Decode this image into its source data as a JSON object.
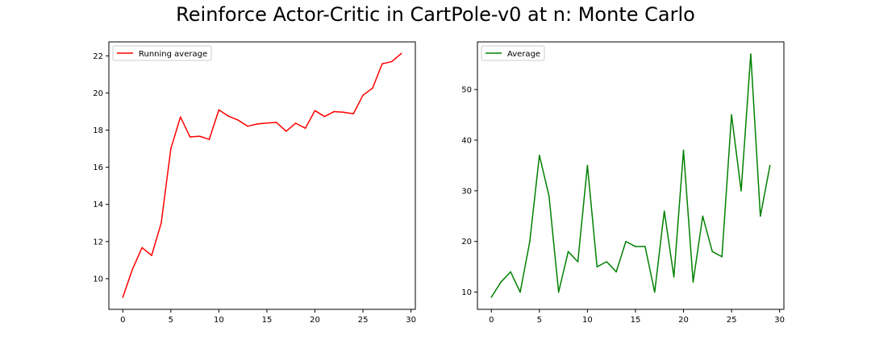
{
  "figure": {
    "title": "Reinforce Actor-Critic in CartPole-v0 at n: Monte Carlo"
  },
  "chart_data": [
    {
      "type": "line",
      "title": "",
      "xlabel": "",
      "ylabel": "",
      "xlim": [
        -1.45,
        30.45
      ],
      "ylim": [
        8.35,
        22.75
      ],
      "xticks": [
        0,
        5,
        10,
        15,
        20,
        25,
        30
      ],
      "yticks": [
        10,
        12,
        14,
        16,
        18,
        20,
        22
      ],
      "grid": false,
      "legend_position": "upper-left",
      "series": [
        {
          "name": "Running average",
          "color": "#ff0000",
          "x": [
            0,
            1,
            2,
            3,
            4,
            5,
            6,
            7,
            8,
            9,
            10,
            11,
            12,
            13,
            14,
            15,
            16,
            17,
            18,
            19,
            20,
            21,
            22,
            23,
            24,
            25,
            26,
            27,
            28,
            29
          ],
          "values": [
            9.0,
            10.5,
            11.67,
            11.25,
            13.0,
            17.0,
            18.71,
            17.63,
            17.67,
            17.5,
            19.09,
            18.75,
            18.54,
            18.21,
            18.33,
            18.38,
            18.41,
            17.94,
            18.37,
            18.1,
            19.05,
            18.73,
            19.0,
            18.96,
            18.88,
            19.88,
            20.26,
            21.57,
            21.69,
            22.13
          ]
        }
      ]
    },
    {
      "type": "line",
      "title": "",
      "xlabel": "",
      "ylabel": "",
      "xlim": [
        -1.45,
        30.45
      ],
      "ylim": [
        6.6,
        59.4
      ],
      "xticks": [
        0,
        5,
        10,
        15,
        20,
        25,
        30
      ],
      "yticks": [
        10,
        20,
        30,
        40,
        50
      ],
      "grid": false,
      "legend_position": "upper-left",
      "series": [
        {
          "name": "Average",
          "color": "#008000",
          "x": [
            0,
            1,
            2,
            3,
            4,
            5,
            6,
            7,
            8,
            9,
            10,
            11,
            12,
            13,
            14,
            15,
            16,
            17,
            18,
            19,
            20,
            21,
            22,
            23,
            24,
            25,
            26,
            27,
            28,
            29
          ],
          "values": [
            9,
            12,
            14,
            10,
            20,
            37,
            29,
            10,
            18,
            16,
            35,
            15,
            16,
            14,
            20,
            19,
            19,
            10,
            26,
            13,
            38,
            12,
            25,
            18,
            17,
            45,
            30,
            57,
            25,
            35
          ]
        }
      ]
    }
  ]
}
